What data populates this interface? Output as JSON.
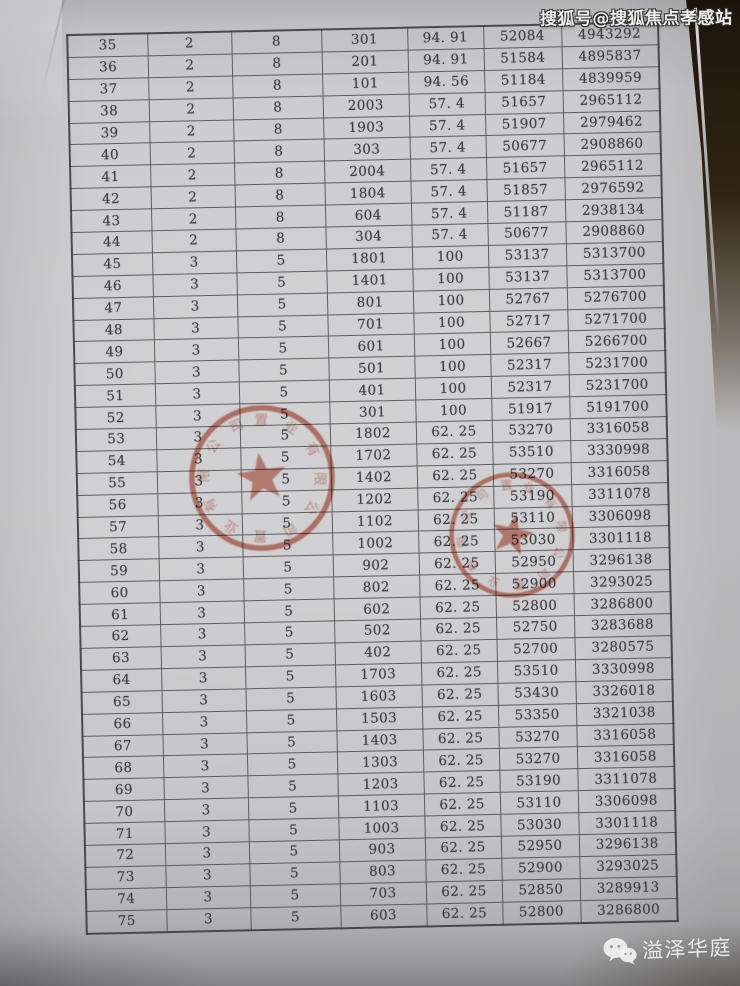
{
  "watermarks": {
    "top_right": "搜狐号@搜狐焦点孝感站",
    "bottom_right_label": "溢泽华庭"
  },
  "table": {
    "rows": [
      [
        "35",
        "2",
        "8",
        "301",
        "94. 91",
        "52084",
        "4943292"
      ],
      [
        "36",
        "2",
        "8",
        "201",
        "94. 91",
        "51584",
        "4895837"
      ],
      [
        "37",
        "2",
        "8",
        "101",
        "94. 56",
        "51184",
        "4839959"
      ],
      [
        "38",
        "2",
        "8",
        "2003",
        "57. 4",
        "51657",
        "2965112"
      ],
      [
        "39",
        "2",
        "8",
        "1903",
        "57. 4",
        "51907",
        "2979462"
      ],
      [
        "40",
        "2",
        "8",
        "303",
        "57. 4",
        "50677",
        "2908860"
      ],
      [
        "41",
        "2",
        "8",
        "2004",
        "57. 4",
        "51657",
        "2965112"
      ],
      [
        "42",
        "2",
        "8",
        "1804",
        "57. 4",
        "51857",
        "2976592"
      ],
      [
        "43",
        "2",
        "8",
        "604",
        "57. 4",
        "51187",
        "2938134"
      ],
      [
        "44",
        "2",
        "8",
        "304",
        "57. 4",
        "50677",
        "2908860"
      ],
      [
        "45",
        "3",
        "5",
        "1801",
        "100",
        "53137",
        "5313700"
      ],
      [
        "46",
        "3",
        "5",
        "1401",
        "100",
        "53137",
        "5313700"
      ],
      [
        "47",
        "3",
        "5",
        "801",
        "100",
        "52767",
        "5276700"
      ],
      [
        "48",
        "3",
        "5",
        "701",
        "100",
        "52717",
        "5271700"
      ],
      [
        "49",
        "3",
        "5",
        "601",
        "100",
        "52667",
        "5266700"
      ],
      [
        "50",
        "3",
        "5",
        "501",
        "100",
        "52317",
        "5231700"
      ],
      [
        "51",
        "3",
        "5",
        "401",
        "100",
        "52317",
        "5231700"
      ],
      [
        "52",
        "3",
        "5",
        "301",
        "100",
        "51917",
        "5191700"
      ],
      [
        "53",
        "3",
        "5",
        "1802",
        "62. 25",
        "53270",
        "3316058"
      ],
      [
        "54",
        "3",
        "5",
        "1702",
        "62. 25",
        "53510",
        "3330998"
      ],
      [
        "55",
        "3",
        "5",
        "1402",
        "62. 25",
        "53270",
        "3316058"
      ],
      [
        "56",
        "3",
        "5",
        "1202",
        "62. 25",
        "53190",
        "3311078"
      ],
      [
        "57",
        "3",
        "5",
        "1102",
        "62. 25",
        "53110",
        "3306098"
      ],
      [
        "58",
        "3",
        "5",
        "1002",
        "62. 25",
        "53030",
        "3301118"
      ],
      [
        "59",
        "3",
        "5",
        "902",
        "62. 25",
        "52950",
        "3296138"
      ],
      [
        "60",
        "3",
        "5",
        "802",
        "62. 25",
        "52900",
        "3293025"
      ],
      [
        "61",
        "3",
        "5",
        "602",
        "62. 25",
        "52800",
        "3286800"
      ],
      [
        "62",
        "3",
        "5",
        "502",
        "62. 25",
        "52750",
        "3283688"
      ],
      [
        "63",
        "3",
        "5",
        "402",
        "62. 25",
        "52700",
        "3280575"
      ],
      [
        "64",
        "3",
        "5",
        "1703",
        "62. 25",
        "53510",
        "3330998"
      ],
      [
        "65",
        "3",
        "5",
        "1603",
        "62. 25",
        "53430",
        "3326018"
      ],
      [
        "66",
        "3",
        "5",
        "1503",
        "62. 25",
        "53350",
        "3321038"
      ],
      [
        "67",
        "3",
        "5",
        "1403",
        "62. 25",
        "53270",
        "3316058"
      ],
      [
        "68",
        "3",
        "5",
        "1303",
        "62. 25",
        "53270",
        "3316058"
      ],
      [
        "69",
        "3",
        "5",
        "1203",
        "62. 25",
        "53190",
        "3311078"
      ],
      [
        "70",
        "3",
        "5",
        "1103",
        "62. 25",
        "53110",
        "3306098"
      ],
      [
        "71",
        "3",
        "5",
        "1003",
        "62. 25",
        "53030",
        "3301118"
      ],
      [
        "72",
        "3",
        "5",
        "903",
        "62. 25",
        "52950",
        "3296138"
      ],
      [
        "73",
        "3",
        "5",
        "803",
        "62. 25",
        "52900",
        "3293025"
      ],
      [
        "74",
        "3",
        "5",
        "703",
        "62. 25",
        "52850",
        "3289913"
      ],
      [
        "75",
        "3",
        "5",
        "603",
        "62. 25",
        "52800",
        "3286800"
      ]
    ]
  },
  "stamps": [
    {
      "rim_text_approx": "置业有限公司置业有限公司",
      "color": "#c05038"
    },
    {
      "rim_text_approx": "业有限公司置业有限公司置",
      "color": "#c2543c"
    }
  ],
  "colors": {
    "paper": "#cbcbcd",
    "backdrop": "#2a2013",
    "ink": "#3e4046",
    "seal_red": "#c05038",
    "watermark_white": "#ededee"
  }
}
